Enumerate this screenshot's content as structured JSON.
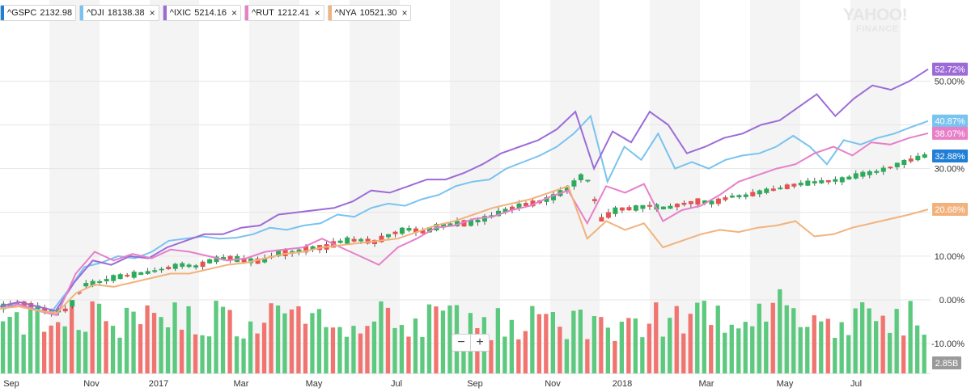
{
  "chart_data": {
    "type": "line",
    "title": "",
    "xlabel": "",
    "ylabel": "",
    "x_ticks": [
      "Sep",
      "Nov",
      "2017",
      "Mar",
      "May",
      "Jul",
      "Sep",
      "Nov",
      "2018",
      "Mar",
      "May",
      "Jul"
    ],
    "y_ticks": [
      "50.00%",
      "40.00%",
      "30.00%",
      "20.00%",
      "10.00%",
      "0.00%",
      "-10.00%"
    ],
    "ylim": [
      -12,
      58
    ],
    "grid": true,
    "legend_position": "top-left",
    "series": [
      {
        "name": "^GSPC",
        "last_value": "2132.98",
        "end_label": "32.88%",
        "color": "#1f7fd6",
        "values": [
          -1.5,
          -0.8,
          -1.5,
          -2.8,
          -2.2,
          3.4,
          4.1,
          5.2,
          5.7,
          6.3,
          7.1,
          8.0,
          7.6,
          9.2,
          9.6,
          9.0,
          8.8,
          10.6,
          10.9,
          11.8,
          12.1,
          13.5,
          13.7,
          13.2,
          15.0,
          16.2,
          15.5,
          16.9,
          17.4,
          17.6,
          18.8,
          20.3,
          21.6,
          22.2,
          23.4,
          25.6,
          28.9,
          18.4,
          20.7,
          20.9,
          21.5,
          20.9,
          21.9,
          22.5,
          22.2,
          23.6,
          23.8,
          24.8,
          25.4,
          26.3,
          26.8,
          27.1,
          27.5,
          28.6,
          29.2,
          30.4,
          31.8,
          32.88
        ]
      },
      {
        "name": "^DJI",
        "last_value": "18138.38",
        "end_label": "40.87%",
        "color": "#79c3f0",
        "values": [
          -2.0,
          -1.0,
          -2.0,
          -3.0,
          2.0,
          7.5,
          8.5,
          10.0,
          9.5,
          11.0,
          13.5,
          14.0,
          14.5,
          14.0,
          14.2,
          15.0,
          16.5,
          16.0,
          17.0,
          17.5,
          19.5,
          19.0,
          21.0,
          22.0,
          21.5,
          23.0,
          24.0,
          26.0,
          27.0,
          27.5,
          30.0,
          31.5,
          33.0,
          35.0,
          38.0,
          42.0,
          27.0,
          35.0,
          32.0,
          38.0,
          30.0,
          31.5,
          30.0,
          32.0,
          33.0,
          33.5,
          35.0,
          37.5,
          35.0,
          31.0,
          36.5,
          35.5,
          37.0,
          38.0,
          39.5,
          40.87
        ]
      },
      {
        "name": "^IXIC",
        "last_value": "5214.16",
        "end_label": "52.72%",
        "color": "#9d6bd8",
        "values": [
          -1.5,
          -0.5,
          -1.5,
          -2.5,
          4.0,
          9.0,
          8.0,
          10.0,
          9.5,
          12.0,
          13.5,
          15.0,
          15.0,
          16.5,
          17.0,
          19.5,
          20.0,
          20.5,
          21.0,
          22.5,
          25.0,
          24.5,
          26.0,
          27.5,
          27.5,
          29.0,
          31.0,
          33.5,
          35.0,
          36.5,
          39.0,
          43.0,
          30.0,
          38.5,
          36.0,
          43.0,
          40.0,
          33.5,
          35.0,
          37.0,
          38.0,
          40.0,
          41.0,
          44.0,
          47.0,
          42.0,
          46.0,
          49.0,
          48.0,
          50.0,
          52.72
        ]
      },
      {
        "name": "^RUT",
        "last_value": "1212.41",
        "end_label": "38.07%",
        "color": "#e77fc9",
        "values": [
          -2.0,
          -1.0,
          -2.5,
          -3.5,
          6.0,
          11.0,
          9.0,
          10.5,
          9.5,
          11.5,
          11.0,
          10.0,
          9.0,
          9.5,
          11.0,
          11.5,
          12.0,
          14.0,
          12.0,
          10.0,
          8.0,
          12.0,
          14.0,
          16.5,
          17.0,
          18.5,
          19.0,
          20.5,
          21.5,
          23.5,
          25.0,
          17.5,
          26.0,
          24.5,
          26.5,
          18.0,
          20.5,
          21.5,
          24.0,
          27.0,
          28.5,
          30.0,
          31.0,
          33.5,
          35.0,
          33.0,
          36.0,
          35.5,
          37.0,
          38.07
        ]
      },
      {
        "name": "^NYA",
        "last_value": "10521.30",
        "end_label": "20.68%",
        "color": "#f2b27c",
        "values": [
          -2.0,
          -1.5,
          -2.5,
          -3.0,
          1.5,
          3.5,
          3.0,
          4.0,
          5.0,
          6.0,
          6.0,
          7.0,
          8.0,
          8.5,
          9.5,
          10.5,
          11.0,
          12.0,
          12.5,
          13.0,
          13.5,
          14.0,
          15.5,
          17.0,
          18.0,
          19.5,
          21.0,
          22.0,
          23.0,
          24.5,
          26.0,
          14.0,
          18.0,
          16.0,
          17.5,
          12.0,
          13.5,
          15.0,
          16.0,
          15.5,
          16.5,
          17.0,
          18.0,
          14.5,
          15.0,
          16.5,
          17.5,
          18.5,
          19.5,
          20.68
        ]
      }
    ],
    "volume_label": "2.85B",
    "volume_count": 135
  },
  "legend": [
    {
      "symbol": "^GSPC",
      "value": "2132.98",
      "color": "#1f7fd6",
      "closable": false
    },
    {
      "symbol": "^DJI",
      "value": "18138.38",
      "color": "#79c3f0",
      "closable": true
    },
    {
      "symbol": "^IXIC",
      "value": "5214.16",
      "color": "#9d6bd8",
      "closable": true
    },
    {
      "symbol": "^RUT",
      "value": "1212.41",
      "color": "#e77fc9",
      "closable": true
    },
    {
      "symbol": "^NYA",
      "value": "10521.30",
      "color": "#f2b27c",
      "closable": true
    }
  ],
  "close_glyph": "×",
  "watermark": {
    "line1": "YAHOO!",
    "line2": "FINANCE"
  },
  "zoom": {
    "minus": "−",
    "plus": "+"
  },
  "colors": {
    "up": "#2aad5a",
    "down": "#e8524f",
    "volume_up": "#5cc97e",
    "volume_down": "#f07470",
    "band": "#f4f4f4",
    "grid": "#e6e6e6"
  }
}
